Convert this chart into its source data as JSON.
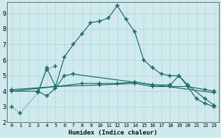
{
  "xlabel": "Humidex (Indice chaleur)",
  "bg_color": "#ceeaed",
  "grid_color": "#b8d8dc",
  "line_color": "#1e6b6b",
  "xlim": [
    -0.5,
    23.5
  ],
  "ylim": [
    2.0,
    9.7
  ],
  "yticks": [
    2,
    3,
    4,
    5,
    6,
    7,
    8,
    9
  ],
  "xticks": [
    0,
    1,
    2,
    3,
    4,
    5,
    6,
    7,
    8,
    9,
    10,
    11,
    12,
    13,
    14,
    15,
    16,
    17,
    18,
    19,
    20,
    21,
    22,
    23
  ],
  "curve_main_x": [
    3,
    4,
    5,
    6,
    7,
    8,
    9,
    10,
    11,
    12,
    13,
    14,
    15,
    16,
    17,
    18,
    19,
    20,
    21,
    22,
    23
  ],
  "curve_main_y": [
    3.9,
    5.5,
    4.3,
    6.2,
    7.0,
    7.7,
    8.4,
    8.5,
    8.7,
    9.5,
    8.6,
    7.8,
    6.0,
    5.5,
    5.1,
    5.0,
    5.0,
    4.3,
    3.5,
    3.2,
    3.0
  ],
  "line_zigzag_x": [
    0,
    1,
    3,
    4,
    5
  ],
  "line_zigzag_y": [
    3.0,
    2.6,
    3.9,
    5.4,
    5.6
  ],
  "line_flat1_x": [
    0,
    3,
    4,
    5,
    6,
    7,
    23
  ],
  "line_flat1_y": [
    4.0,
    4.0,
    3.7,
    4.2,
    5.0,
    5.1,
    3.9
  ],
  "line_flat2_x": [
    0,
    5,
    8,
    10,
    12,
    14,
    16,
    18,
    19,
    20,
    22,
    23
  ],
  "line_flat2_y": [
    4.0,
    4.3,
    4.5,
    4.5,
    4.5,
    4.6,
    4.4,
    4.4,
    5.0,
    4.4,
    3.5,
    3.1
  ],
  "line_flat3_x": [
    0,
    5,
    10,
    14,
    16,
    18,
    20,
    22,
    23
  ],
  "line_flat3_y": [
    4.1,
    4.3,
    4.4,
    4.5,
    4.3,
    4.3,
    4.3,
    4.1,
    4.0
  ]
}
